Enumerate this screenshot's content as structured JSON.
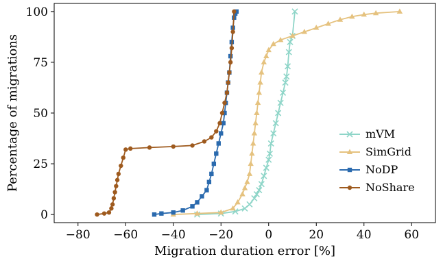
{
  "chart_data": {
    "type": "line",
    "title": "",
    "xlabel": "Migration duration error [%]",
    "ylabel": "Percentage of migrations",
    "xlim": [
      -90,
      70
    ],
    "ylim": [
      -4,
      104
    ],
    "xticks": [
      -80,
      -60,
      -40,
      -20,
      0,
      20,
      40,
      60
    ],
    "yticks": [
      0,
      25,
      50,
      75,
      100
    ],
    "grid": false,
    "legend_position": "right",
    "series": [
      {
        "name": "mVM",
        "color": "#8ed5c8",
        "marker": "x",
        "points": [
          [
            -30,
            0
          ],
          [
            -20,
            0.5
          ],
          [
            -14,
            1.5
          ],
          [
            -10,
            3
          ],
          [
            -8,
            5
          ],
          [
            -6,
            8
          ],
          [
            -5,
            10
          ],
          [
            -4,
            12
          ],
          [
            -3,
            15
          ],
          [
            -2,
            19
          ],
          [
            -1,
            23
          ],
          [
            0,
            27
          ],
          [
            0.5,
            30
          ],
          [
            1,
            35
          ],
          [
            2,
            40
          ],
          [
            3,
            45
          ],
          [
            4,
            50
          ],
          [
            5,
            55
          ],
          [
            6,
            60
          ],
          [
            7,
            65
          ],
          [
            7.5,
            68
          ],
          [
            8,
            73
          ],
          [
            8.5,
            80
          ],
          [
            9,
            85
          ],
          [
            10,
            88
          ],
          [
            11,
            100
          ]
        ]
      },
      {
        "name": "SimGrid",
        "color": "#e5c27f",
        "marker": "triangle",
        "points": [
          [
            -40,
            0
          ],
          [
            -30,
            0.5
          ],
          [
            -20,
            1
          ],
          [
            -15,
            3
          ],
          [
            -13,
            6
          ],
          [
            -11,
            10
          ],
          [
            -10,
            13
          ],
          [
            -9,
            16
          ],
          [
            -8,
            20
          ],
          [
            -7.5,
            25
          ],
          [
            -7,
            30
          ],
          [
            -6.5,
            35
          ],
          [
            -6,
            40
          ],
          [
            -5.5,
            45
          ],
          [
            -5,
            50
          ],
          [
            -4.5,
            55
          ],
          [
            -4,
            60
          ],
          [
            -3.5,
            65
          ],
          [
            -3,
            70
          ],
          [
            -2,
            75
          ],
          [
            -1,
            78
          ],
          [
            0,
            81
          ],
          [
            2,
            84
          ],
          [
            5,
            86
          ],
          [
            10,
            88
          ],
          [
            15,
            90
          ],
          [
            20,
            92
          ],
          [
            25,
            94
          ],
          [
            30,
            96
          ],
          [
            35,
            97.5
          ],
          [
            40,
            98.5
          ],
          [
            45,
            99.2
          ],
          [
            55,
            100
          ]
        ]
      },
      {
        "name": "NoDP",
        "color": "#2a6aae",
        "marker": "square",
        "points": [
          [
            -48,
            0
          ],
          [
            -45,
            0.5
          ],
          [
            -40,
            1
          ],
          [
            -36,
            2
          ],
          [
            -32,
            4
          ],
          [
            -30,
            6
          ],
          [
            -28,
            9
          ],
          [
            -26,
            12
          ],
          [
            -25,
            16
          ],
          [
            -24,
            20
          ],
          [
            -23,
            25
          ],
          [
            -22,
            30
          ],
          [
            -21,
            35
          ],
          [
            -20,
            40
          ],
          [
            -19,
            45
          ],
          [
            -18.5,
            50
          ],
          [
            -18,
            55
          ],
          [
            -17.5,
            60
          ],
          [
            -17,
            65
          ],
          [
            -16.5,
            70
          ],
          [
            -16,
            78
          ],
          [
            -15.5,
            85
          ],
          [
            -15,
            92
          ],
          [
            -14.5,
            97
          ],
          [
            -14,
            99
          ],
          [
            -13.5,
            100
          ]
        ]
      },
      {
        "name": "NoShare",
        "color": "#9e5a1e",
        "marker": "circle",
        "points": [
          [
            -72,
            0
          ],
          [
            -69,
            0.5
          ],
          [
            -67,
            1
          ],
          [
            -66,
            3
          ],
          [
            -65.5,
            5
          ],
          [
            -65,
            8
          ],
          [
            -64.5,
            11
          ],
          [
            -64,
            14
          ],
          [
            -63.5,
            17
          ],
          [
            -63,
            20
          ],
          [
            -62,
            24
          ],
          [
            -61,
            28
          ],
          [
            -60,
            32
          ],
          [
            -58,
            32.5
          ],
          [
            -50,
            33
          ],
          [
            -40,
            33.5
          ],
          [
            -32,
            34
          ],
          [
            -27,
            36
          ],
          [
            -24,
            38
          ],
          [
            -22,
            41
          ],
          [
            -20.5,
            45
          ],
          [
            -19.5,
            50
          ],
          [
            -18.5,
            55
          ],
          [
            -17.5,
            60
          ],
          [
            -17,
            65
          ],
          [
            -16.5,
            70
          ],
          [
            -16,
            75
          ],
          [
            -15.5,
            82
          ],
          [
            -15,
            90
          ],
          [
            -14.5,
            100
          ]
        ]
      }
    ]
  }
}
